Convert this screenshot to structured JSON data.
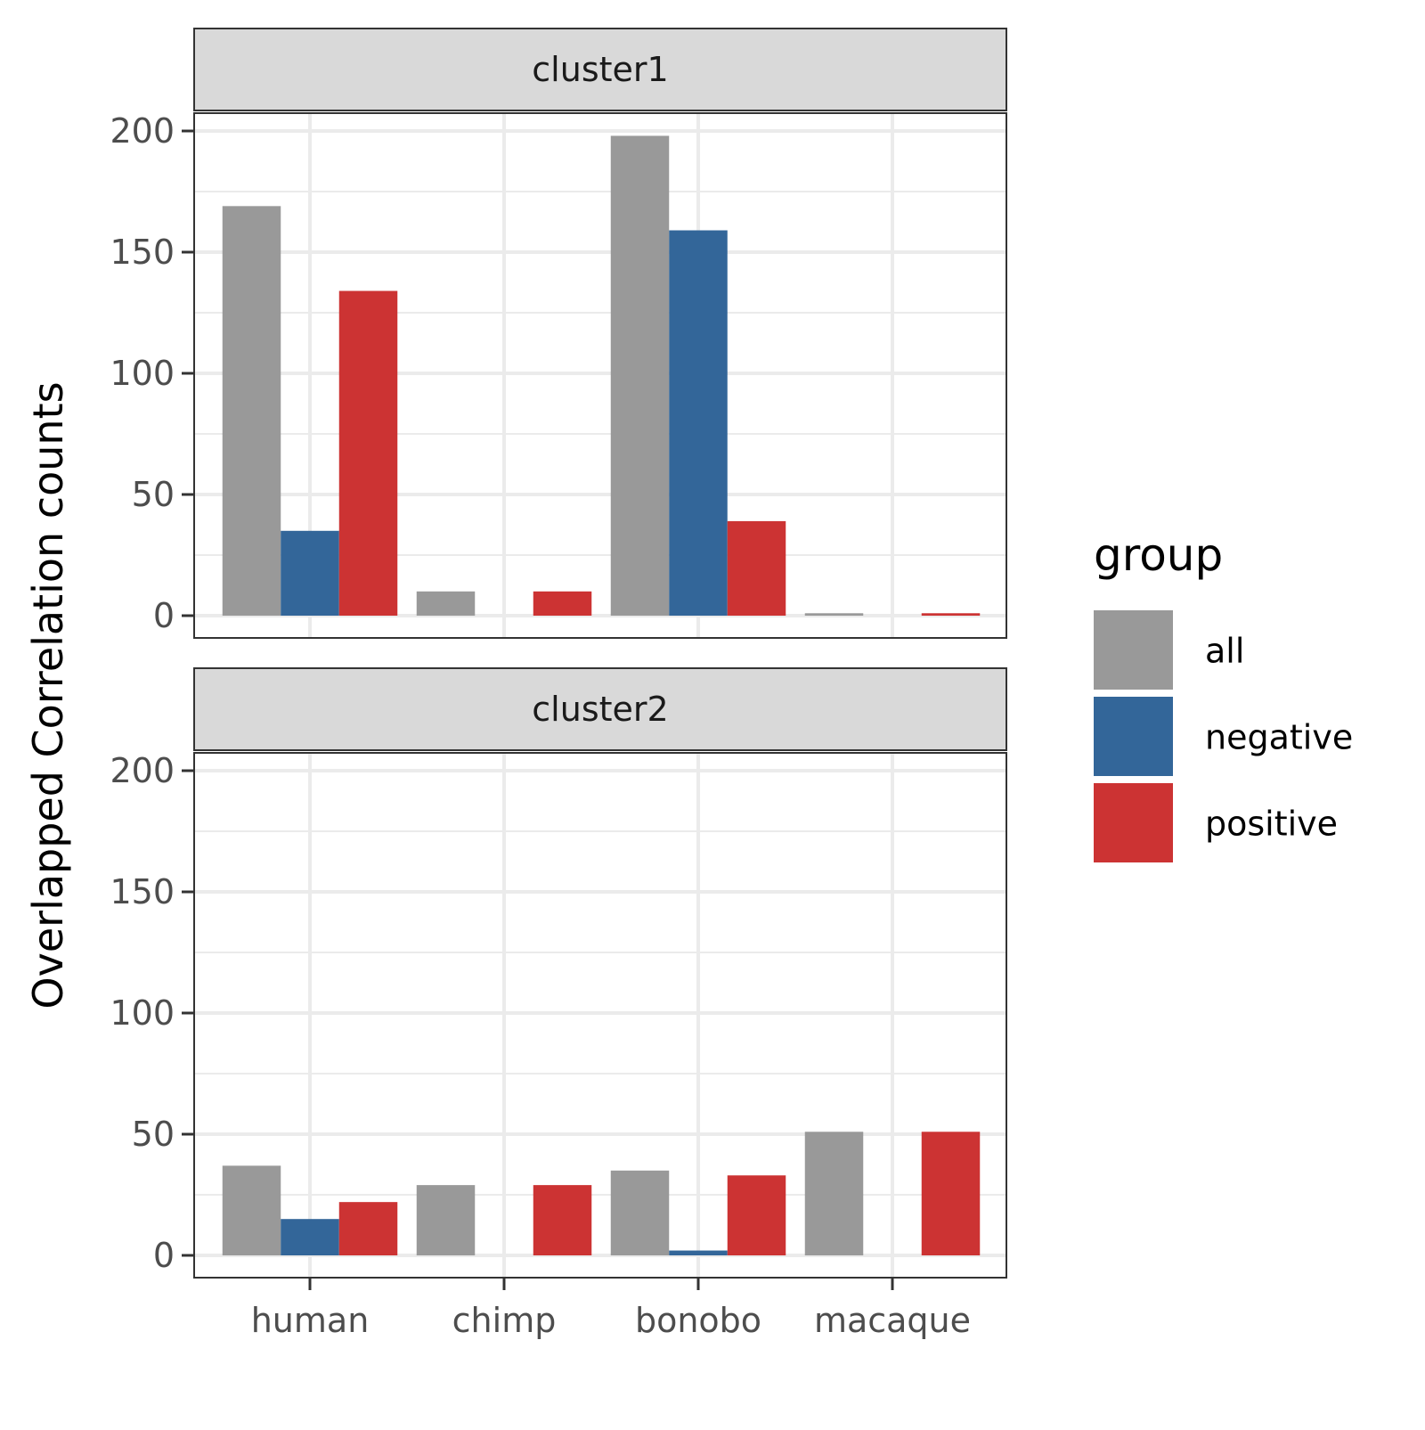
{
  "chart_data": {
    "type": "bar",
    "ylabel": "Overlapped Correlation counts",
    "xlabel": "",
    "categories": [
      "human",
      "chimp",
      "bonobo",
      "macaque"
    ],
    "ylim": [
      0,
      200
    ],
    "y_ticks": [
      0,
      50,
      100,
      150,
      200
    ],
    "y_tick_labels": [
      "0",
      "50",
      "100",
      "150",
      "200"
    ],
    "grid": true,
    "legend": {
      "title": "group",
      "position": "right",
      "entries": [
        "all",
        "negative",
        "positive"
      ]
    },
    "colors": {
      "all": "#999999",
      "negative": "#336699",
      "positive": "#cc3333"
    },
    "panels": [
      {
        "strip": "cluster1",
        "series": [
          {
            "name": "all",
            "values": [
              169,
              10,
              198,
              1
            ]
          },
          {
            "name": "negative",
            "values": [
              35,
              0,
              159,
              0
            ]
          },
          {
            "name": "positive",
            "values": [
              134,
              10,
              39,
              1
            ]
          }
        ]
      },
      {
        "strip": "cluster2",
        "series": [
          {
            "name": "all",
            "values": [
              37,
              29,
              35,
              51
            ]
          },
          {
            "name": "negative",
            "values": [
              15,
              0,
              2,
              0
            ]
          },
          {
            "name": "positive",
            "values": [
              22,
              29,
              33,
              51
            ]
          }
        ]
      }
    ]
  }
}
